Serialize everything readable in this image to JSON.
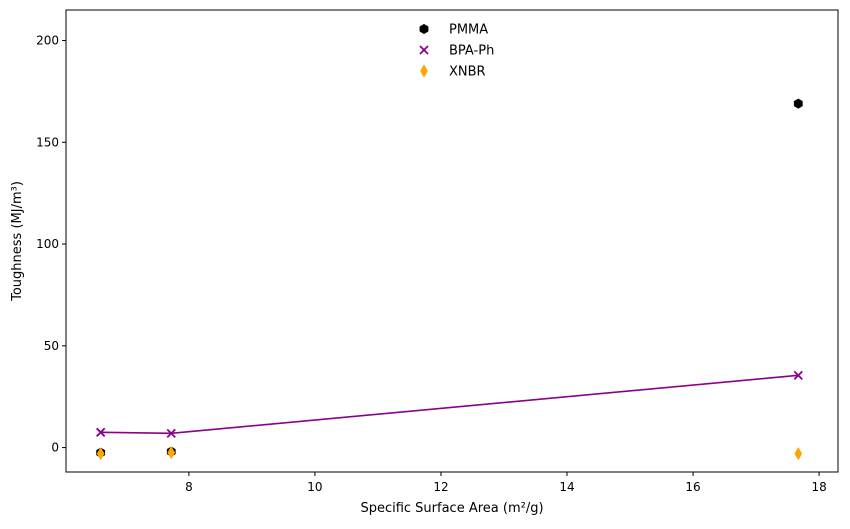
{
  "chart_data": {
    "type": "scatter",
    "title": "",
    "xlabel": "Specific Surface Area (m²/g)",
    "ylabel": "Toughness (MJ/m³)",
    "xlim": [
      6.05,
      18.3
    ],
    "ylim": [
      -12,
      215
    ],
    "xticks": [
      8,
      10,
      12,
      14,
      16,
      18
    ],
    "yticks": [
      0,
      50,
      100,
      150,
      200
    ],
    "grid": false,
    "legend_position": "top-center",
    "series": [
      {
        "name": "PMMA",
        "marker": "hexagon",
        "color": "#000000",
        "line": false,
        "x": [
          6.6,
          7.72,
          17.67
        ],
        "y": [
          -2.5,
          -2.0,
          169.0
        ]
      },
      {
        "name": "BPA-Ph",
        "marker": "x",
        "color": "#8b008b",
        "line": true,
        "x": [
          6.6,
          7.72,
          17.67
        ],
        "y": [
          7.5,
          7.0,
          35.5
        ]
      },
      {
        "name": "XNBR",
        "marker": "diamond",
        "color": "#ffa500",
        "line": false,
        "x": [
          6.6,
          7.72,
          17.67
        ],
        "y": [
          -3.0,
          -2.5,
          -3.0
        ]
      }
    ]
  }
}
